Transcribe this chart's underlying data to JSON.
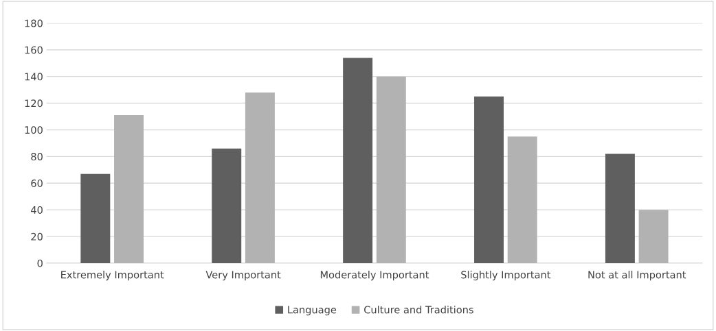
{
  "chart_data": {
    "type": "bar",
    "categories": [
      "Extremely Important",
      "Very Important",
      "Moderately Important",
      "Slightly Important",
      "Not at all Important"
    ],
    "series": [
      {
        "name": "Language",
        "color": "#5f5f5f",
        "values": [
          67,
          86,
          154,
          125,
          82
        ]
      },
      {
        "name": "Culture and Traditions",
        "color": "#b2b2b2",
        "values": [
          111,
          128,
          140,
          95,
          40
        ]
      }
    ],
    "ylim": [
      0,
      180
    ],
    "yticks": [
      0,
      20,
      40,
      60,
      80,
      100,
      120,
      140,
      160,
      180
    ],
    "grid": "y",
    "legend": "bottom"
  }
}
